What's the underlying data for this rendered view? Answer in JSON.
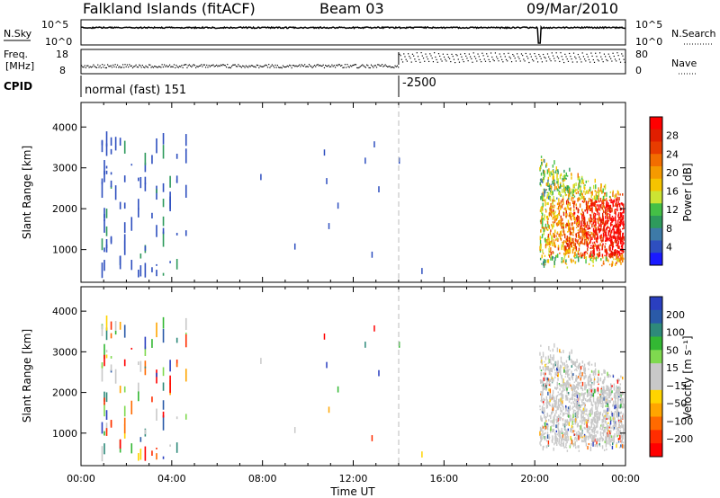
{
  "header": {
    "station": "Falkland Islands (fitACF)",
    "beam": "Beam 03",
    "date": "09/Mar/2010"
  },
  "summary_panels": {
    "nsky_label": "N.Sky",
    "nsearch_label": "N.Search",
    "noise_ticks": [
      "10^5",
      "10^0"
    ],
    "freq_label_1": "Freq.",
    "freq_label_2": "[MHz]",
    "freq_ticks": [
      "18",
      "8"
    ],
    "nave_label": "Nave",
    "nave_ticks": [
      "80",
      "0"
    ],
    "cpid_label": "CPID",
    "cpid_1": "normal (fast) 151",
    "cpid_2": "-2500"
  },
  "colors": {
    "power": [
      "#1a1aff",
      "#2e4fbf",
      "#3d7aa8",
      "#2e9a5c",
      "#44c046",
      "#cce433",
      "#f5c400",
      "#f59a00",
      "#f26d00",
      "#e83c00",
      "#e01e00",
      "#ff0000"
    ],
    "velocity": [
      "#ff0000",
      "#ff2d00",
      "#ff6a00",
      "#ffa500",
      "#ffd400",
      "#c8c8c8",
      "#c8c8c8",
      "#7fd94f",
      "#33b833",
      "#2e8a7a",
      "#2a5aa8",
      "#2a3fc0"
    ]
  },
  "chart_data": [
    {
      "type": "heatmap",
      "name": "power-panel",
      "ylabel": "Slant Range [km]",
      "xlabel": "Time UT",
      "ylim": [
        200,
        4600
      ],
      "xlim": [
        0,
        24
      ],
      "xticks": [
        "00:00",
        "04:00",
        "08:00",
        "12:00",
        "16:00",
        "20:00",
        "00:00"
      ],
      "yticks": [
        "1000",
        "2000",
        "3000",
        "4000"
      ],
      "colorbar_label": "Power [dB]",
      "colorbar_ticks": [
        "28",
        "24",
        "20",
        "16",
        "12",
        "8",
        "4"
      ],
      "cpid_change_time": 14.0
    },
    {
      "type": "heatmap",
      "name": "velocity-panel",
      "ylabel": "Slant Range [km]",
      "xlabel": "Time UT",
      "ylim": [
        200,
        4600
      ],
      "xlim": [
        0,
        24
      ],
      "xticks": [
        "00:00",
        "04:00",
        "08:00",
        "12:00",
        "16:00",
        "20:00",
        "00:00"
      ],
      "yticks": [
        "1000",
        "2000",
        "3000",
        "4000"
      ],
      "colorbar_label": "Velocity [m s⁻¹]",
      "colorbar_ticks": [
        "200",
        "100",
        "50",
        "15",
        "−15",
        "−50",
        "−100",
        "−200"
      ],
      "cpid_change_time": 14.0
    }
  ]
}
